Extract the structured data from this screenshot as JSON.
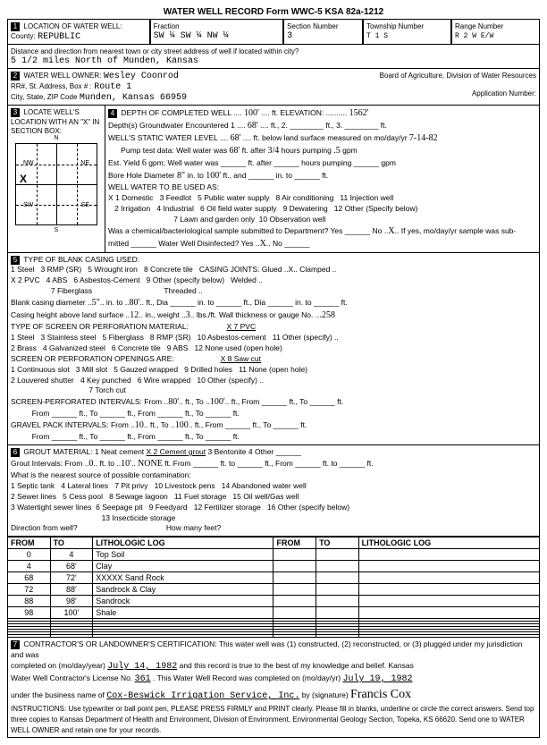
{
  "form_title": "WATER WELL RECORD    Form WWC-5    KSA 82a-1212",
  "section1": {
    "county_label": "LOCATION OF WATER WELL:",
    "county_sub": "County:",
    "county": "REPUBLIC",
    "fraction_label": "Fraction",
    "fraction": "SW ¼  SW ¼  NW ¼",
    "section_num_label": "Section Number",
    "section_num": "3",
    "township_label": "Township Number",
    "township": "T 1       S",
    "range_label": "Range Number",
    "range": "R 2 W    E/W",
    "dist_label": "Distance and direction from nearest town or city street address of well if located within city?",
    "dist": "5 1/2 miles North of Munden, Kansas"
  },
  "section2": {
    "owner_label": "WATER WELL OWNER:",
    "owner": "Wesley Coonrod",
    "rr_label": "RR#, St. Address, Box # :",
    "rr": "Route 1",
    "city_label": "City, State, ZIP Code",
    "city": "Munden, Kansas  66959",
    "board": "Board of Agriculture, Division of Water Resources",
    "app_label": "Application Number:"
  },
  "section3_label": "LOCATE WELL'S LOCATION WITH AN \"X\" IN SECTION BOX:",
  "section4": {
    "depth_label": "DEPTH OF COMPLETED WELL",
    "depth": "100'",
    "elev_label": "ft. ELEVATION:",
    "elev": "1562'",
    "gw_label": "Depth(s) Groundwater Encountered  1",
    "gw": "68'",
    "gw2": "ft., 2. ________ ft., 3. ________ ft.",
    "static_label": "WELL'S STATIC WATER LEVEL",
    "static": "68'",
    "static2": "ft. below land surface measured on mo/day/yr",
    "static_date": "7-14-82",
    "pump_label": "Pump test data:  Well water was",
    "pump_ft": "68'",
    "pump_after": "ft. after",
    "pump_hrs": "3/4",
    "pump_hrs2": "hours pumping",
    "pump_gpm": ".5",
    "est_yield_label": "Est. Yield",
    "est_yield": "6",
    "est_yield2": "gpm; Well water was ______ ft. after ______ hours pumping ______ gpm",
    "bore_label": "Bore Hole Diameter",
    "bore1": "8\"",
    "bore_in": "in. to",
    "bore2": "100'",
    "bore_ft": "ft., and ______ in. to ______ ft.",
    "use_label": "WELL WATER TO BE USED AS:",
    "uses": "X 1 Domestic   3 Feedlot   5 Public water supply   8 Air conditioning   11 Injection well\n   2 Irrigation   4 Industrial   6 Oil field water supply   9 Dewatering   12 Other (Specify below)\n                               7 Lawn and garden only  10 Observation well",
    "chem_label": "Was a chemical/bacteriological sample submitted to Department? Yes ______ No",
    "chem_no": "X",
    "chem2": "If yes, mo/day/yr sample was sub-",
    "chem3": "mitted ______  Water Well Disinfected? Yes",
    "disinfect": "X",
    "disinfect2": "No ______"
  },
  "section5": {
    "label": "TYPE OF BLANK CASING USED:",
    "types": "1 Steel   3 RMP (SR)   5 Wrought iron   8 Concrete tile   CASING JOINTS: Glued ..X.. Clamped ..\nX 2 PVC   4 ABS   6 Asbestos-Cement   9 Other (specify below)   Welded ..\n                   7 Fiberglass                                  Threaded ..",
    "casing_dia_label": "Blank casing diameter",
    "casing_dia": "5\"",
    "casing_to": "in. to",
    "casing_ft": "80'",
    "casing_rest": "ft., Dia ______ in. to ______ ft., Dia ______ in. to ______ ft.",
    "height_label": "Casing height above land surface",
    "height": "12",
    "height2": "in., weight",
    "weight": "3",
    "weight2": "lbs./ft. Wall thickness or gauge No.",
    "gauge": ".258",
    "screen_label": "TYPE OF SCREEN OR PERFORATION MATERIAL:",
    "screen_sel": "X 7 PVC",
    "screen_types": "1 Steel   3 Stainless steel   5 Fiberglass   8 RMP (SR)   10 Asbestos-cement   11 Other (specify) ..\n2 Brass   4 Galvanized steel   6 Concrete tile   9 ABS   12 None used (open hole)",
    "open_label": "SCREEN OR PERFORATION OPENINGS ARE:",
    "open_sel": "X 8 Saw cut",
    "open_types": "1 Continuous slot   3 Mill slot   5 Gauzed wrapped   9 Drilled holes   11 None (open hole)\n2 Louvered shutter   4 Key punched   6 Wire wrapped   10 Other (specify) ..\n                                     7 Torch cut",
    "perf_label": "SCREEN-PERFORATED INTERVALS:   From",
    "perf_from": "80'",
    "perf_to": "ft., To",
    "perf_to_v": "100'",
    "perf_rest": "ft., From ______ ft., To ______ ft.",
    "gravel_label": "GRAVEL PACK INTERVALS:   From",
    "gravel_from": "10",
    "gravel_to": "ft., To",
    "gravel_to_v": "100",
    "gravel_rest": "ft., From ______ ft., To ______ ft."
  },
  "section6": {
    "label": "GROUT MATERIAL:   1 Neat cement   ",
    "sel": "X 2 Cement grout",
    "rest": "   3 Bentonite   4 Other ______",
    "grout_int": "Grout Intervals:   From",
    "g_from": "0",
    "g_to": "ft. to",
    "g_to_v": "10'",
    "g_none": "NONE",
    "g_rest": "ft.  From ______ ft. to ______ ft., From ______ ft. to ______ ft.",
    "contam_label": "What is the nearest source of possible contamination:",
    "contam": "1 Septic tank   4 Lateral lines   7 Pit privy   10 Livestock pens   14 Abandoned water well\n2 Sewer lines   5 Cess pool   8 Sewage lagoon   11 Fuel storage   15 Oil well/Gas well\n3 Watertight sewer lines  6 Seepage pit   9 Feedyard   12 Fertilizer storage   16 Other (specify below)\n                                           13 Insecticide storage",
    "dir_label": "Direction from well?",
    "feet_label": "How many feet?"
  },
  "litho": {
    "headers": [
      "FROM",
      "TO",
      "LITHOLOGIC LOG",
      "FROM",
      "TO",
      "LITHOLOGIC LOG"
    ],
    "rows": [
      [
        "0",
        "4",
        "Top Soil",
        "",
        "",
        ""
      ],
      [
        "4",
        "68'",
        "Clay",
        "",
        "",
        ""
      ],
      [
        "68",
        "72'",
        "XXXXX Sand Rock",
        "",
        "",
        ""
      ],
      [
        "72",
        "88'",
        "Sandrock & Clay",
        "",
        "",
        ""
      ],
      [
        "88",
        "98'",
        "Sandrock",
        "",
        "",
        ""
      ],
      [
        "98",
        "100'",
        "Shale",
        "",
        "",
        ""
      ],
      [
        "",
        "",
        "",
        "",
        "",
        ""
      ],
      [
        "",
        "",
        "",
        "",
        "",
        ""
      ],
      [
        "",
        "",
        "",
        "",
        "",
        ""
      ],
      [
        "",
        "",
        "",
        "",
        "",
        ""
      ],
      [
        "",
        "",
        "",
        "",
        "",
        ""
      ],
      [
        "",
        "",
        "",
        "",
        "",
        ""
      ],
      [
        "",
        "",
        "",
        "",
        "",
        ""
      ]
    ]
  },
  "section7": {
    "cert": "CONTRACTOR'S OR LANDOWNER'S CERTIFICATION: This water well was (1) constructed, (2) reconstructed, or (3) plugged under my jurisdiction and was",
    "completed_label": "completed on (mo/day/year)",
    "completed": "July 14, 1982",
    "cert2": "and this record is true to the best of my knowledge and belief. Kansas",
    "lic_label": "Water Well Contractor's License No.",
    "lic": "361",
    "rec_label": "This Water Well Record was completed on (mo/day/yr)",
    "rec_date": "July 19, 1982",
    "biz_label": "under the business name of",
    "biz": "Cox-Beswick Irrigation Service, Inc.",
    "sig_label": "by (signature)",
    "sig": "Francis Cox",
    "instr": "INSTRUCTIONS: Use typewriter or ball point pen, PLEASE PRESS FIRMLY and PRINT clearly. Please fill in blanks, underline or circle the correct answers. Send top three copies to Kansas Department of Health and Environment, Division of Environment, Environmental Geology Section, Topeka, KS 66620. Send one to WATER WELL OWNER and retain one for your records."
  }
}
